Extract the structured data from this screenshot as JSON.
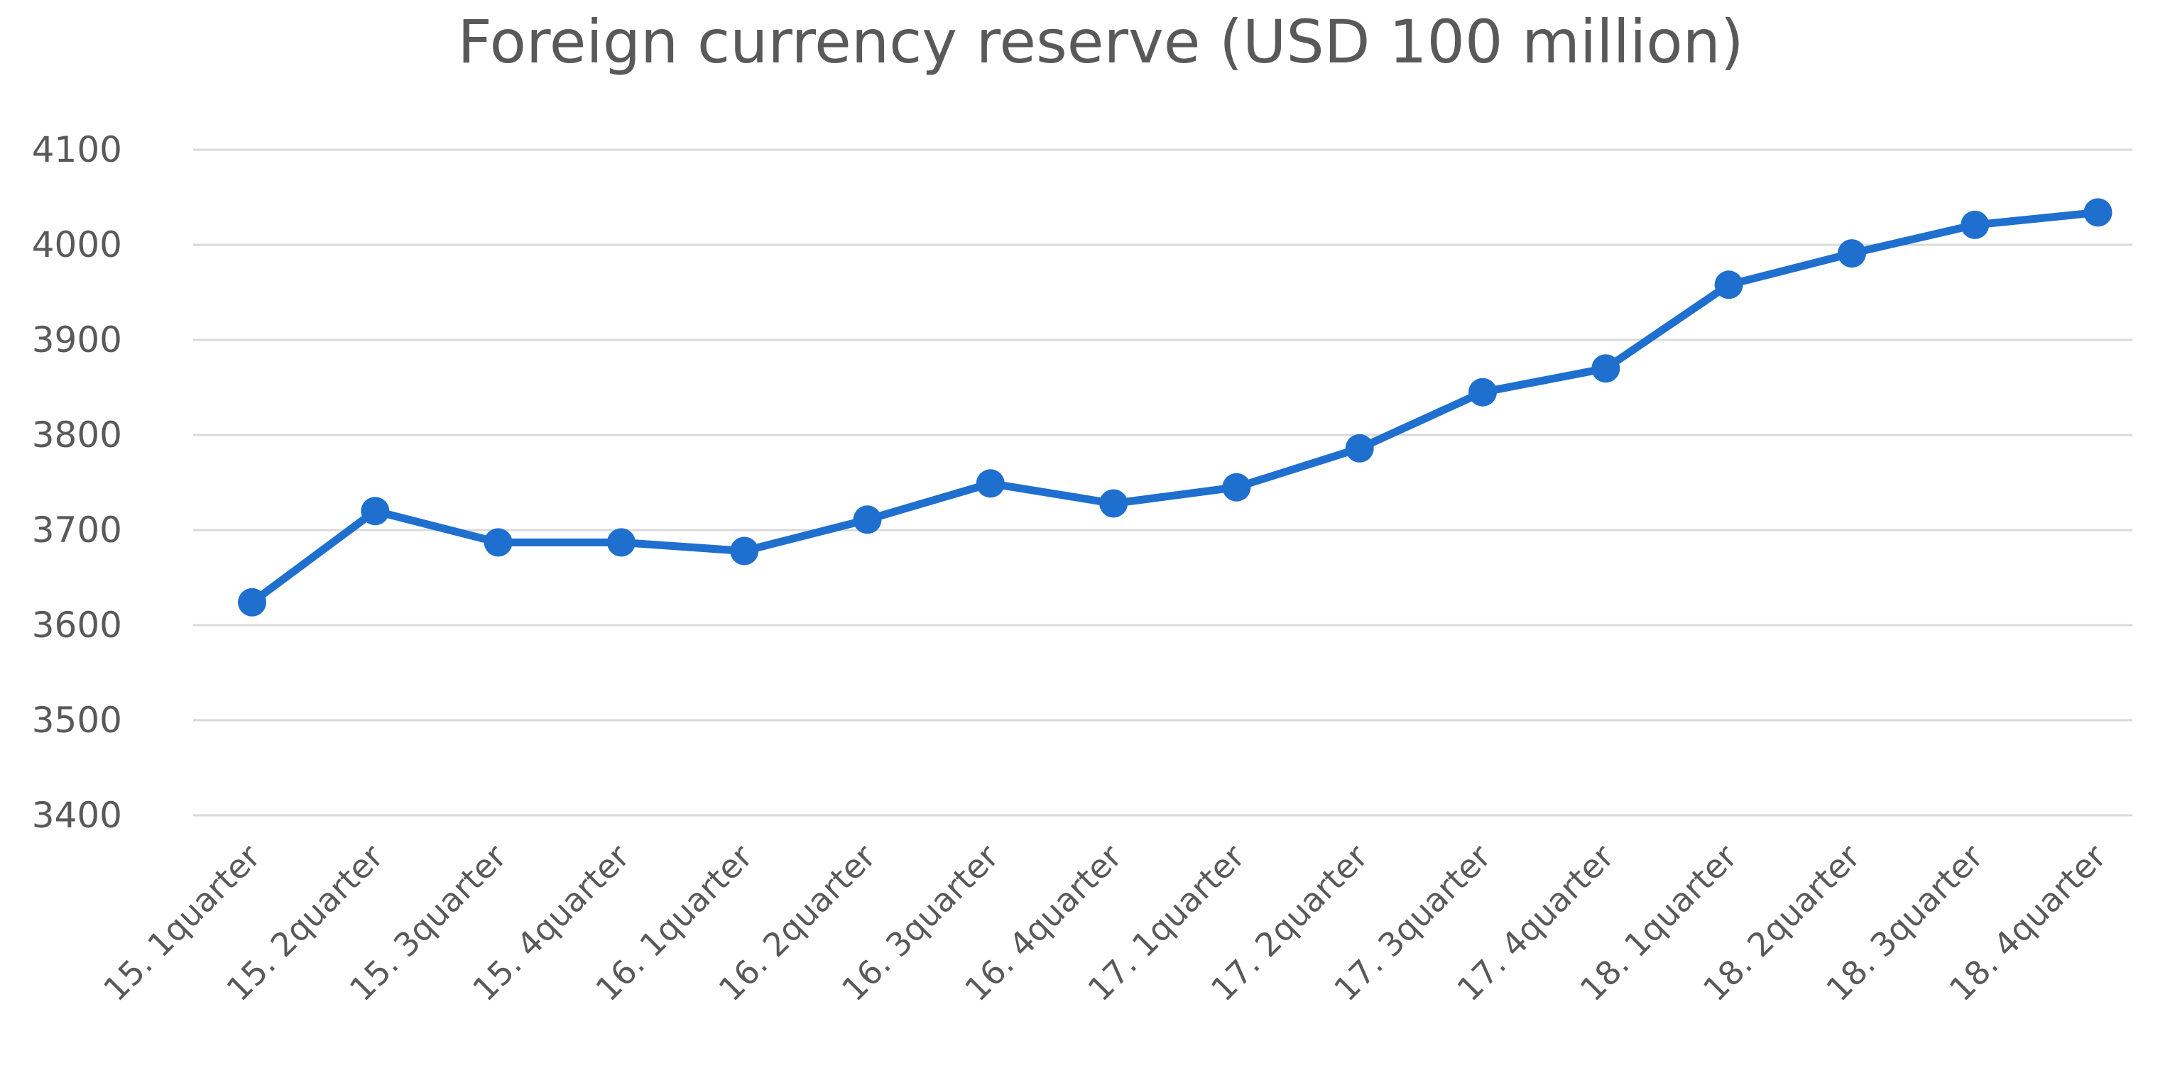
{
  "chart_data": {
    "type": "line",
    "title": "Foreign currency reserve (USD 100 million)",
    "xlabel": "",
    "ylabel": "",
    "categories": [
      "15. 1quarter",
      "15. 2quarter",
      "15. 3quarter",
      "15. 4quarter",
      "16. 1quarter",
      "16. 2quarter",
      "16. 3quarter",
      "16. 4quarter",
      "17. 1quarter",
      "17. 2quarter",
      "17. 3quarter",
      "17. 4quarter",
      "18. 1quarter",
      "18. 2quarter",
      "18. 3quarter",
      "18. 4quarter"
    ],
    "series": [
      {
        "color": "#1f6fcf",
        "values": [
          3624,
          3720,
          3687,
          3687,
          3678,
          3711,
          3749,
          3728,
          3745,
          3786,
          3845,
          3870,
          3958,
          3991,
          4021,
          4034
        ]
      }
    ],
    "ylim": [
      3400,
      4100
    ],
    "yticks": [
      3400,
      3500,
      3600,
      3700,
      3800,
      3900,
      4000,
      4100
    ],
    "grid": true,
    "legend": "none"
  }
}
